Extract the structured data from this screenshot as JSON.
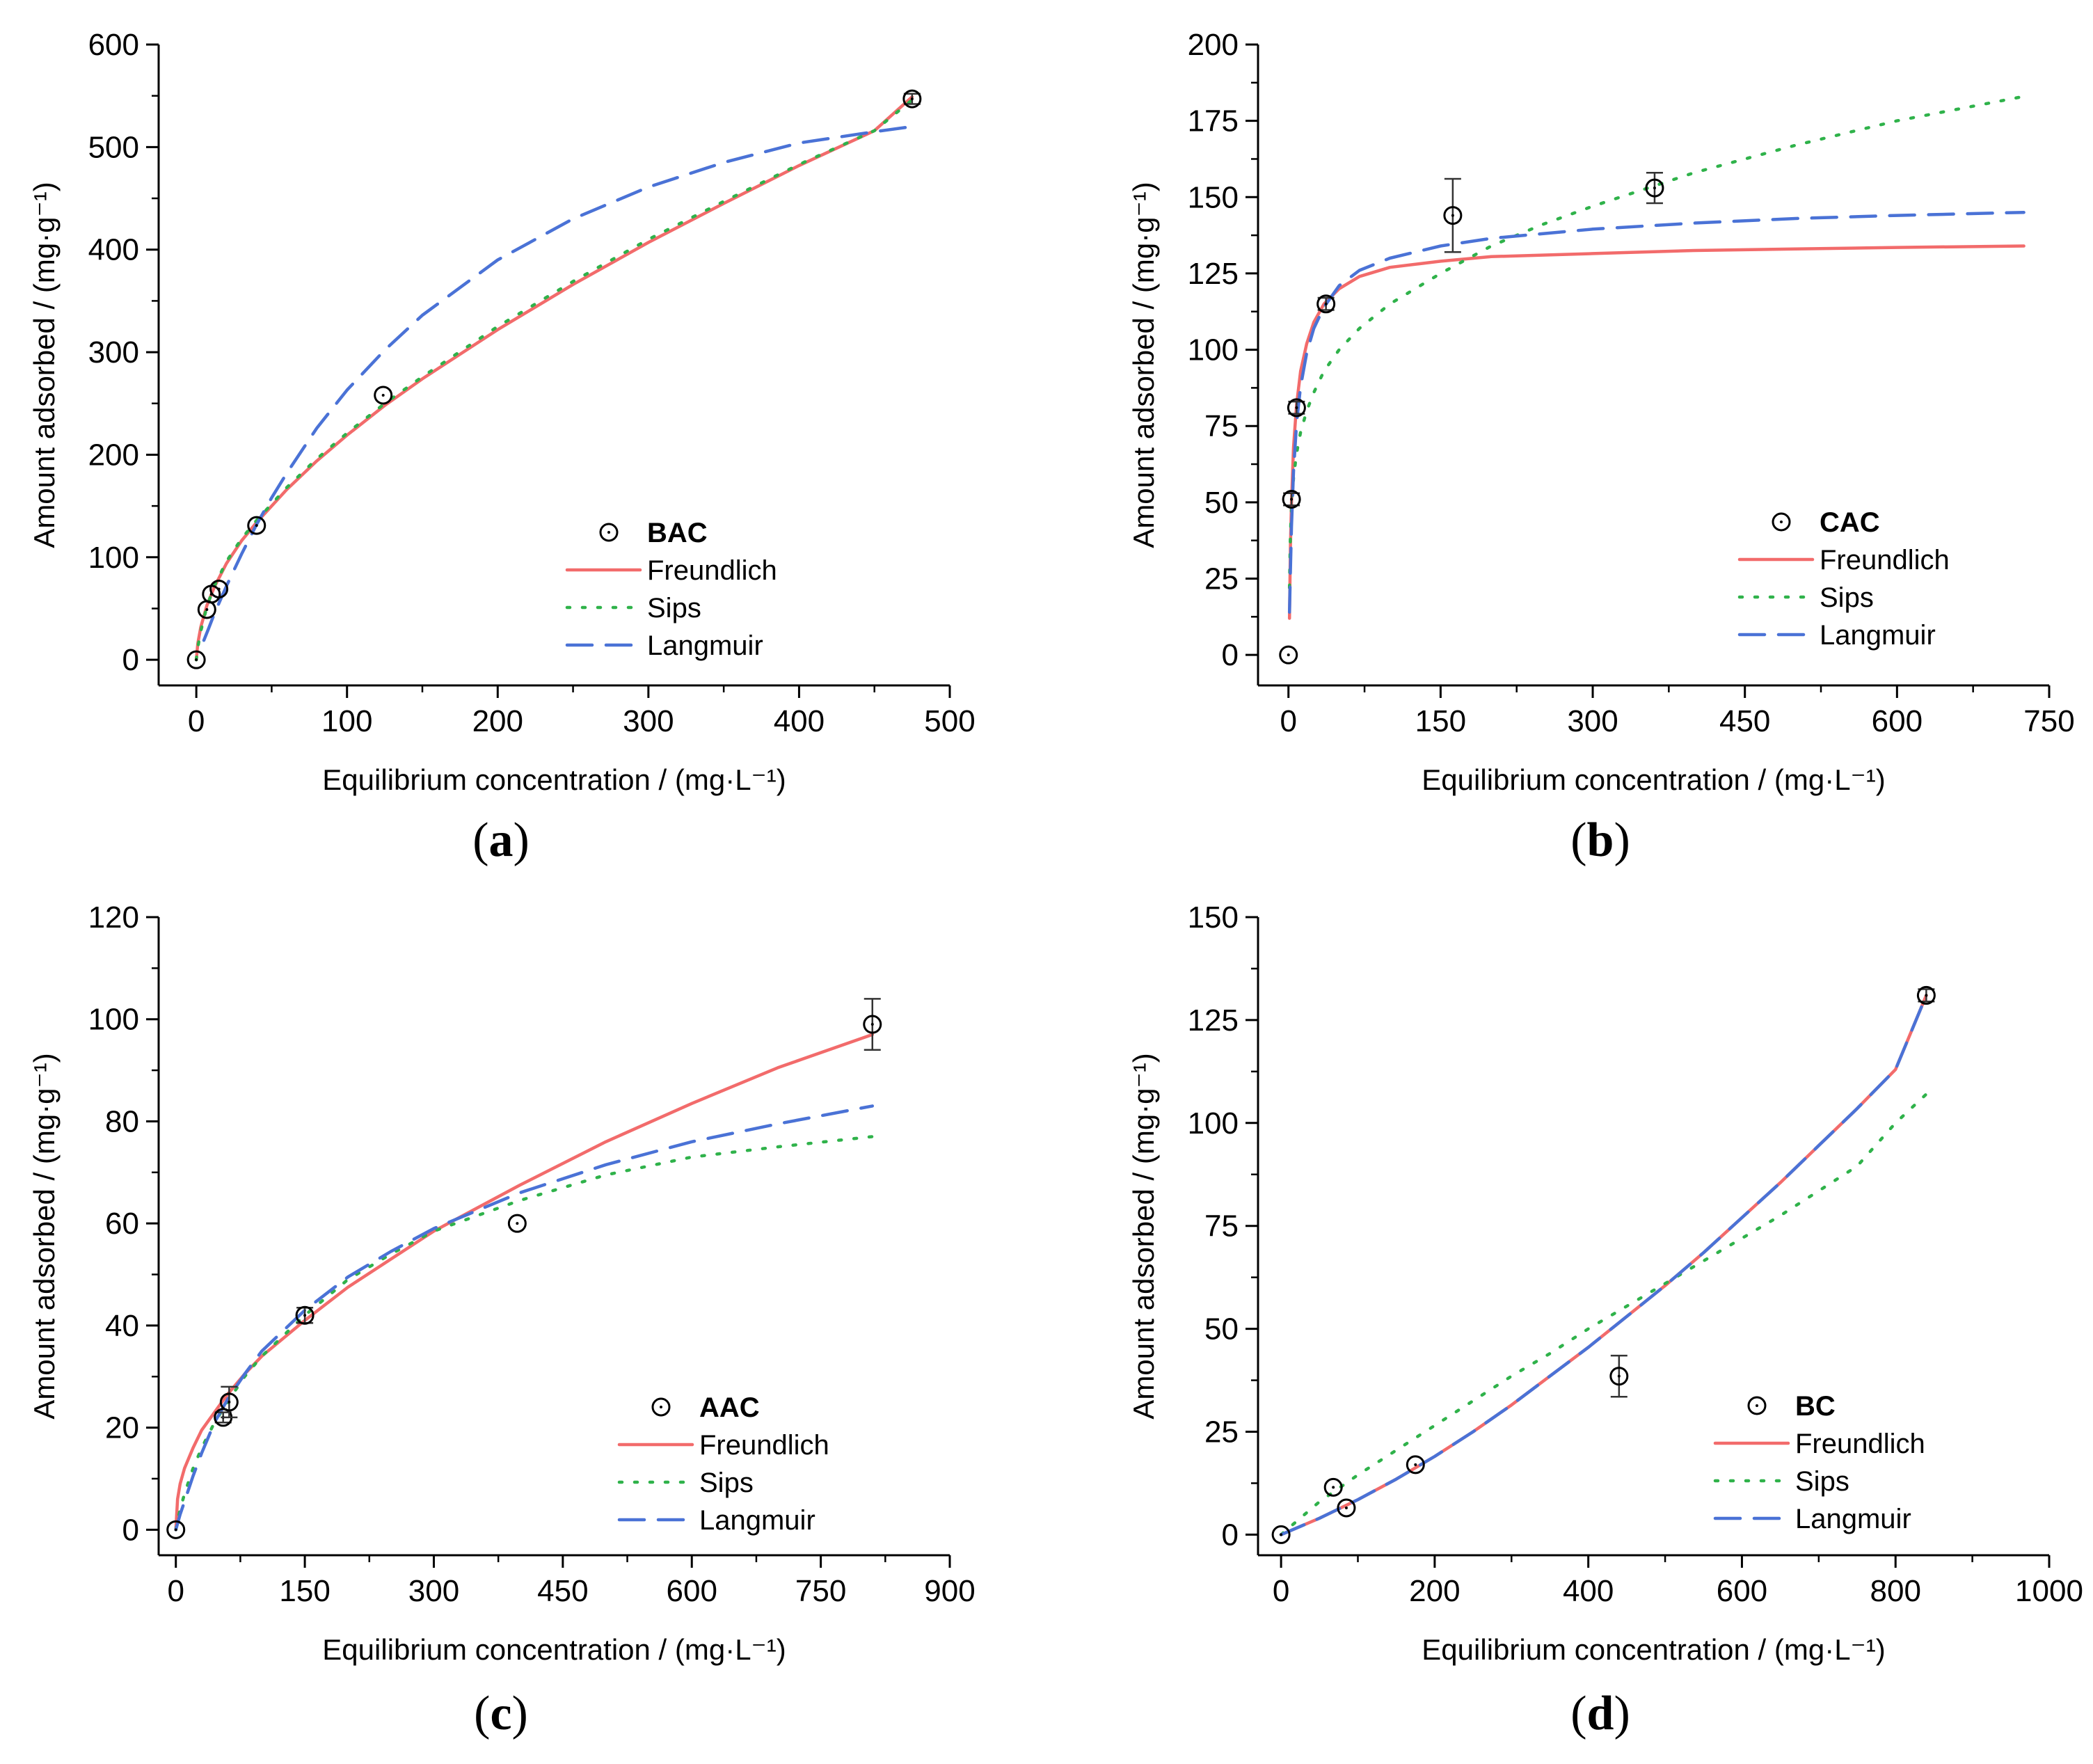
{
  "colors": {
    "freundlich": "#f26b6b",
    "sips": "#2fb24a",
    "langmuir": "#4a72d6",
    "axis": "#000000"
  },
  "chart_data": [
    {
      "id": "a",
      "type": "scatter",
      "panel_label": "a",
      "legend_title": "BAC",
      "xlabel": "Equilibrium concentration / (mg·L⁻¹)",
      "ylabel": "Amount adsorbed / (mg·g⁻¹)",
      "xlim": [
        -25,
        500
      ],
      "ylim": [
        -25,
        600
      ],
      "xticks": [
        0,
        100,
        200,
        300,
        400,
        500
      ],
      "yticks": [
        0,
        100,
        200,
        300,
        400,
        500,
        600
      ],
      "points": [
        {
          "x": 0,
          "y": 0,
          "err": 0
        },
        {
          "x": 7,
          "y": 49,
          "err": 0
        },
        {
          "x": 10,
          "y": 64,
          "err": 0
        },
        {
          "x": 15,
          "y": 69,
          "err": 0
        },
        {
          "x": 40,
          "y": 131,
          "err": 0
        },
        {
          "x": 124,
          "y": 258,
          "err": 0
        },
        {
          "x": 475,
          "y": 547,
          "err": 5
        }
      ],
      "series": [
        {
          "name": "Freundlich",
          "style": "solid",
          "x": [
            0,
            1,
            3,
            7,
            12,
            20,
            30,
            40,
            60,
            80,
            100,
            125,
            150,
            200,
            250,
            300,
            350,
            400,
            450,
            475
          ],
          "y": [
            0,
            16,
            32,
            53,
            71,
            94,
            116,
            134,
            166,
            194,
            219,
            248,
            274,
            322,
            366,
            407,
            445,
            482,
            516,
            549
          ]
        },
        {
          "name": "Sips",
          "style": "dotted",
          "x": [
            0,
            1,
            3,
            7,
            12,
            20,
            30,
            40,
            60,
            80,
            100,
            125,
            150,
            200,
            250,
            300,
            350,
            400,
            450,
            475
          ],
          "y": [
            0,
            12,
            28,
            52,
            72,
            96,
            118,
            136,
            168,
            196,
            221,
            250,
            276,
            325,
            369,
            410,
            447,
            483,
            516,
            546
          ]
        },
        {
          "name": "Langmuir",
          "style": "dashed",
          "x": [
            5,
            8,
            12,
            20,
            30,
            40,
            50,
            60,
            80,
            100,
            125,
            150,
            200,
            250,
            300,
            350,
            400,
            450,
            475
          ],
          "y": [
            19,
            30,
            45,
            72,
            103,
            132,
            158,
            182,
            226,
            263,
            302,
            336,
            390,
            430,
            461,
            485,
            504,
            515,
            520
          ]
        }
      ]
    },
    {
      "id": "b",
      "type": "scatter",
      "panel_label": "b",
      "legend_title": "CAC",
      "xlabel": "Equilibrium concentration / (mg·L⁻¹)",
      "ylabel": "Amount adsorbed / (mg·g⁻¹)",
      "xlim": [
        -30,
        750
      ],
      "ylim": [
        -10,
        200
      ],
      "xticks": [
        0,
        150,
        300,
        450,
        600,
        750
      ],
      "yticks": [
        0,
        25,
        50,
        75,
        100,
        125,
        150,
        175,
        200
      ],
      "points": [
        {
          "x": 0,
          "y": 0,
          "err": 0
        },
        {
          "x": 3,
          "y": 51,
          "err": 2
        },
        {
          "x": 8,
          "y": 81,
          "err": 2
        },
        {
          "x": 37,
          "y": 115,
          "err": 2
        },
        {
          "x": 162,
          "y": 144,
          "err": 12
        },
        {
          "x": 361,
          "y": 153,
          "err": 5
        }
      ],
      "series": [
        {
          "name": "Freundlich",
          "style": "solid",
          "x": [
            1,
            2,
            3,
            5,
            8,
            12,
            18,
            25,
            35,
            50,
            70,
            100,
            150,
            200,
            300,
            400,
            500,
            600,
            725
          ],
          "y": [
            12,
            36,
            50,
            68,
            82,
            93,
            102,
            109,
            115,
            120,
            124,
            127,
            129,
            130.5,
            131.5,
            132.5,
            133,
            133.5,
            134
          ]
        },
        {
          "name": "Sips",
          "style": "dotted",
          "x": [
            1,
            2,
            3,
            5,
            8,
            12,
            18,
            25,
            35,
            50,
            70,
            100,
            150,
            200,
            250,
            300,
            400,
            500,
            600,
            725
          ],
          "y": [
            22,
            40,
            48,
            58,
            66,
            73,
            80,
            86,
            93,
            100,
            107,
            115,
            125,
            134,
            141,
            147,
            158,
            167,
            175,
            183
          ]
        },
        {
          "name": "Langmuir",
          "style": "dashed",
          "x": [
            1,
            2,
            3,
            5,
            8,
            12,
            18,
            25,
            35,
            50,
            70,
            100,
            150,
            200,
            300,
            400,
            500,
            600,
            725
          ],
          "y": [
            14,
            28,
            42,
            60,
            76,
            88,
            99,
            107,
            114,
            121,
            126,
            130,
            134,
            136.5,
            139.5,
            141.5,
            143,
            144,
            145
          ]
        }
      ]
    },
    {
      "id": "c",
      "type": "scatter",
      "panel_label": "c",
      "legend_title": "AAC",
      "xlabel": "Equilibrium concentration / (mg·L⁻¹)",
      "ylabel": "Amount adsorbed / (mg·g⁻¹)",
      "xlim": [
        -20,
        900
      ],
      "ylim": [
        -5,
        120
      ],
      "xticks": [
        0,
        150,
        300,
        450,
        600,
        750,
        900
      ],
      "yticks": [
        0,
        20,
        40,
        60,
        80,
        100,
        120
      ],
      "points": [
        {
          "x": 0,
          "y": 0,
          "err": 0
        },
        {
          "x": 55,
          "y": 22,
          "err": 1
        },
        {
          "x": 62,
          "y": 25,
          "err": 3
        },
        {
          "x": 150,
          "y": 42,
          "err": 1.5
        },
        {
          "x": 397,
          "y": 60,
          "err": 0
        },
        {
          "x": 810,
          "y": 99,
          "err": 5
        }
      ],
      "series": [
        {
          "name": "Freundlich",
          "style": "solid",
          "x": [
            0,
            2,
            5,
            10,
            20,
            30,
            45,
            60,
            80,
            100,
            150,
            200,
            250,
            300,
            400,
            500,
            600,
            700,
            810
          ],
          "y": [
            0,
            6,
            9,
            12,
            16,
            19.5,
            23,
            26.5,
            30.5,
            34,
            41,
            47.5,
            53,
            58.5,
            67.5,
            76,
            83.5,
            90.5,
            97
          ]
        },
        {
          "name": "Sips",
          "style": "dotted",
          "x": [
            0,
            5,
            10,
            20,
            30,
            45,
            60,
            80,
            100,
            150,
            200,
            250,
            300,
            400,
            500,
            600,
            700,
            810
          ],
          "y": [
            0,
            4,
            7,
            12,
            16,
            21,
            25,
            30,
            34,
            42,
            49,
            54,
            58.5,
            64.5,
            69.5,
            73,
            75,
            77
          ]
        },
        {
          "name": "Langmuir",
          "style": "dashed",
          "x": [
            0,
            5,
            10,
            20,
            30,
            45,
            60,
            80,
            100,
            150,
            200,
            250,
            300,
            400,
            500,
            600,
            700,
            810
          ],
          "y": [
            0,
            3,
            5.5,
            10.5,
            15,
            21,
            25.5,
            30.5,
            35,
            43,
            49.5,
            54.5,
            59,
            66,
            71.5,
            76,
            79.5,
            83
          ]
        }
      ]
    },
    {
      "id": "d",
      "type": "scatter",
      "panel_label": "d",
      "legend_title": "BC",
      "xlabel": "Equilibrium concentration / (mg·L⁻¹)",
      "ylabel": "Amount adsorbed / (mg·g⁻¹)",
      "xlim": [
        -30,
        1000
      ],
      "ylim": [
        -5,
        150
      ],
      "xticks": [
        0,
        200,
        400,
        600,
        800,
        1000
      ],
      "yticks": [
        0,
        25,
        50,
        75,
        100,
        125,
        150
      ],
      "points": [
        {
          "x": 0,
          "y": 0,
          "err": 0
        },
        {
          "x": 68,
          "y": 11.5,
          "err": 0
        },
        {
          "x": 85,
          "y": 6.5,
          "err": 0
        },
        {
          "x": 175,
          "y": 17,
          "err": 0
        },
        {
          "x": 440,
          "y": 38.5,
          "err": 5
        },
        {
          "x": 840,
          "y": 131,
          "err": 1.5
        }
      ],
      "series": [
        {
          "name": "Freundlich",
          "style": "solid",
          "x": [
            0,
            50,
            100,
            150,
            200,
            250,
            300,
            350,
            400,
            450,
            500,
            550,
            600,
            650,
            700,
            750,
            800,
            840
          ],
          "y": [
            0,
            4,
            8.5,
            13.5,
            19,
            25,
            31.5,
            38.5,
            45.5,
            53,
            60.5,
            68.5,
            77,
            85.5,
            94.5,
            103.5,
            113,
            131
          ]
        },
        {
          "name": "Sips",
          "style": "dotted",
          "x": [
            0,
            50,
            100,
            150,
            200,
            250,
            300,
            350,
            400,
            450,
            500,
            550,
            600,
            650,
            700,
            750,
            800,
            840
          ],
          "y": [
            0,
            8,
            14.5,
            20.5,
            26.5,
            32.5,
            38.5,
            44,
            50,
            55.5,
            61,
            66.5,
            72,
            77.5,
            83.5,
            89.5,
            100,
            107
          ]
        },
        {
          "name": "Langmuir",
          "style": "dashed",
          "x": [
            0,
            50,
            100,
            150,
            200,
            250,
            300,
            350,
            400,
            450,
            500,
            550,
            600,
            650,
            700,
            750,
            800,
            840
          ],
          "y": [
            0,
            4,
            8.5,
            13.5,
            19,
            25,
            31.5,
            38.5,
            45.5,
            53,
            60.5,
            68.5,
            77,
            85.5,
            94.5,
            103.5,
            113,
            131
          ]
        }
      ]
    }
  ]
}
